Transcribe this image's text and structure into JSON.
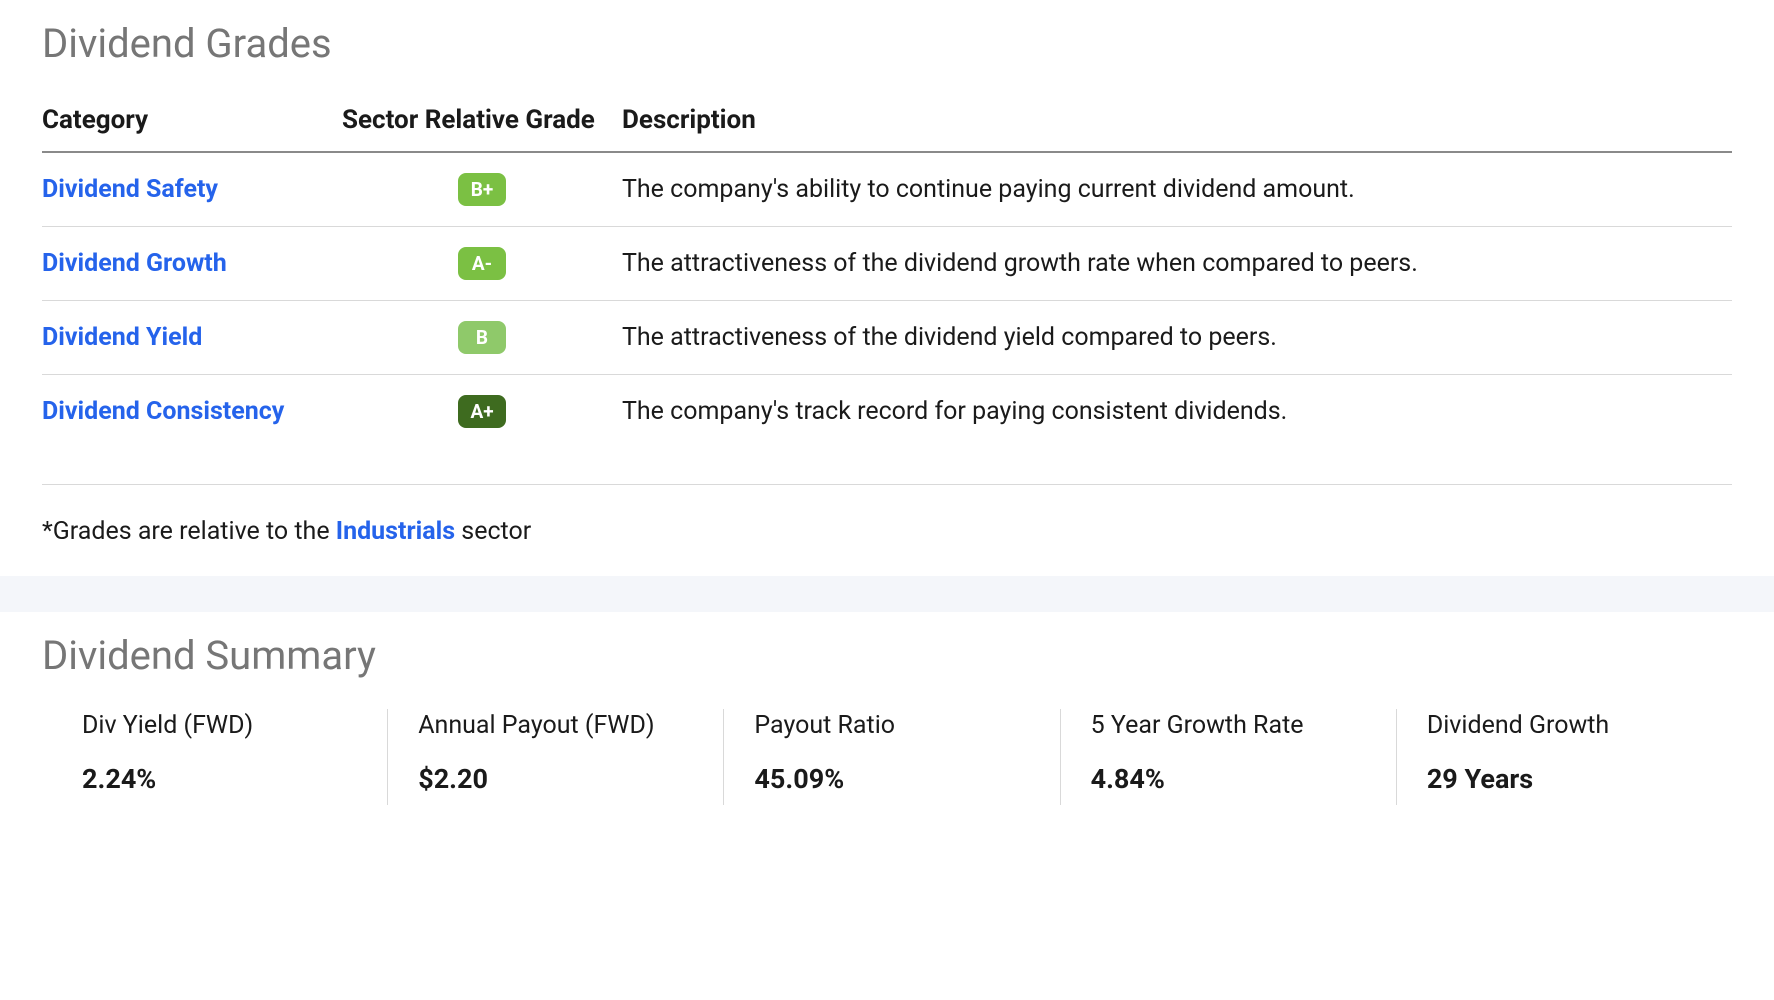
{
  "grades": {
    "title": "Dividend Grades",
    "columns": {
      "category": "Category",
      "grade": "Sector Relative Grade",
      "description": "Description"
    },
    "rows": [
      {
        "category": "Dividend Safety",
        "grade": "B+",
        "grade_color": "#7bc043",
        "description": "The company's ability to continue paying current dividend amount."
      },
      {
        "category": "Dividend Growth",
        "grade": "A-",
        "grade_color": "#7bc043",
        "description": "The attractiveness of the dividend growth rate when compared to peers."
      },
      {
        "category": "Dividend Yield",
        "grade": "B",
        "grade_color": "#8fc96a",
        "description": "The attractiveness of the dividend yield compared to peers."
      },
      {
        "category": "Dividend Consistency",
        "grade": "A+",
        "grade_color": "#3e6b1f",
        "description": "The company's track record for paying consistent dividends."
      }
    ],
    "footnote_prefix": "*Grades are relative to the ",
    "footnote_sector": "Industrials",
    "footnote_suffix": " sector"
  },
  "summary": {
    "title": "Dividend Summary",
    "items": [
      {
        "label": "Div Yield (FWD)",
        "value": "2.24%"
      },
      {
        "label": "Annual Payout (FWD)",
        "value": "$2.20"
      },
      {
        "label": "Payout Ratio",
        "value": "45.09%"
      },
      {
        "label": "5 Year Growth Rate",
        "value": "4.84%"
      },
      {
        "label": "Dividend Growth",
        "value": "29 Years"
      }
    ]
  },
  "colors": {
    "link": "#2563eb",
    "heading": "#767676",
    "text": "#1a1a1a",
    "border": "#d9d9d9",
    "band": "#f4f6fa"
  }
}
